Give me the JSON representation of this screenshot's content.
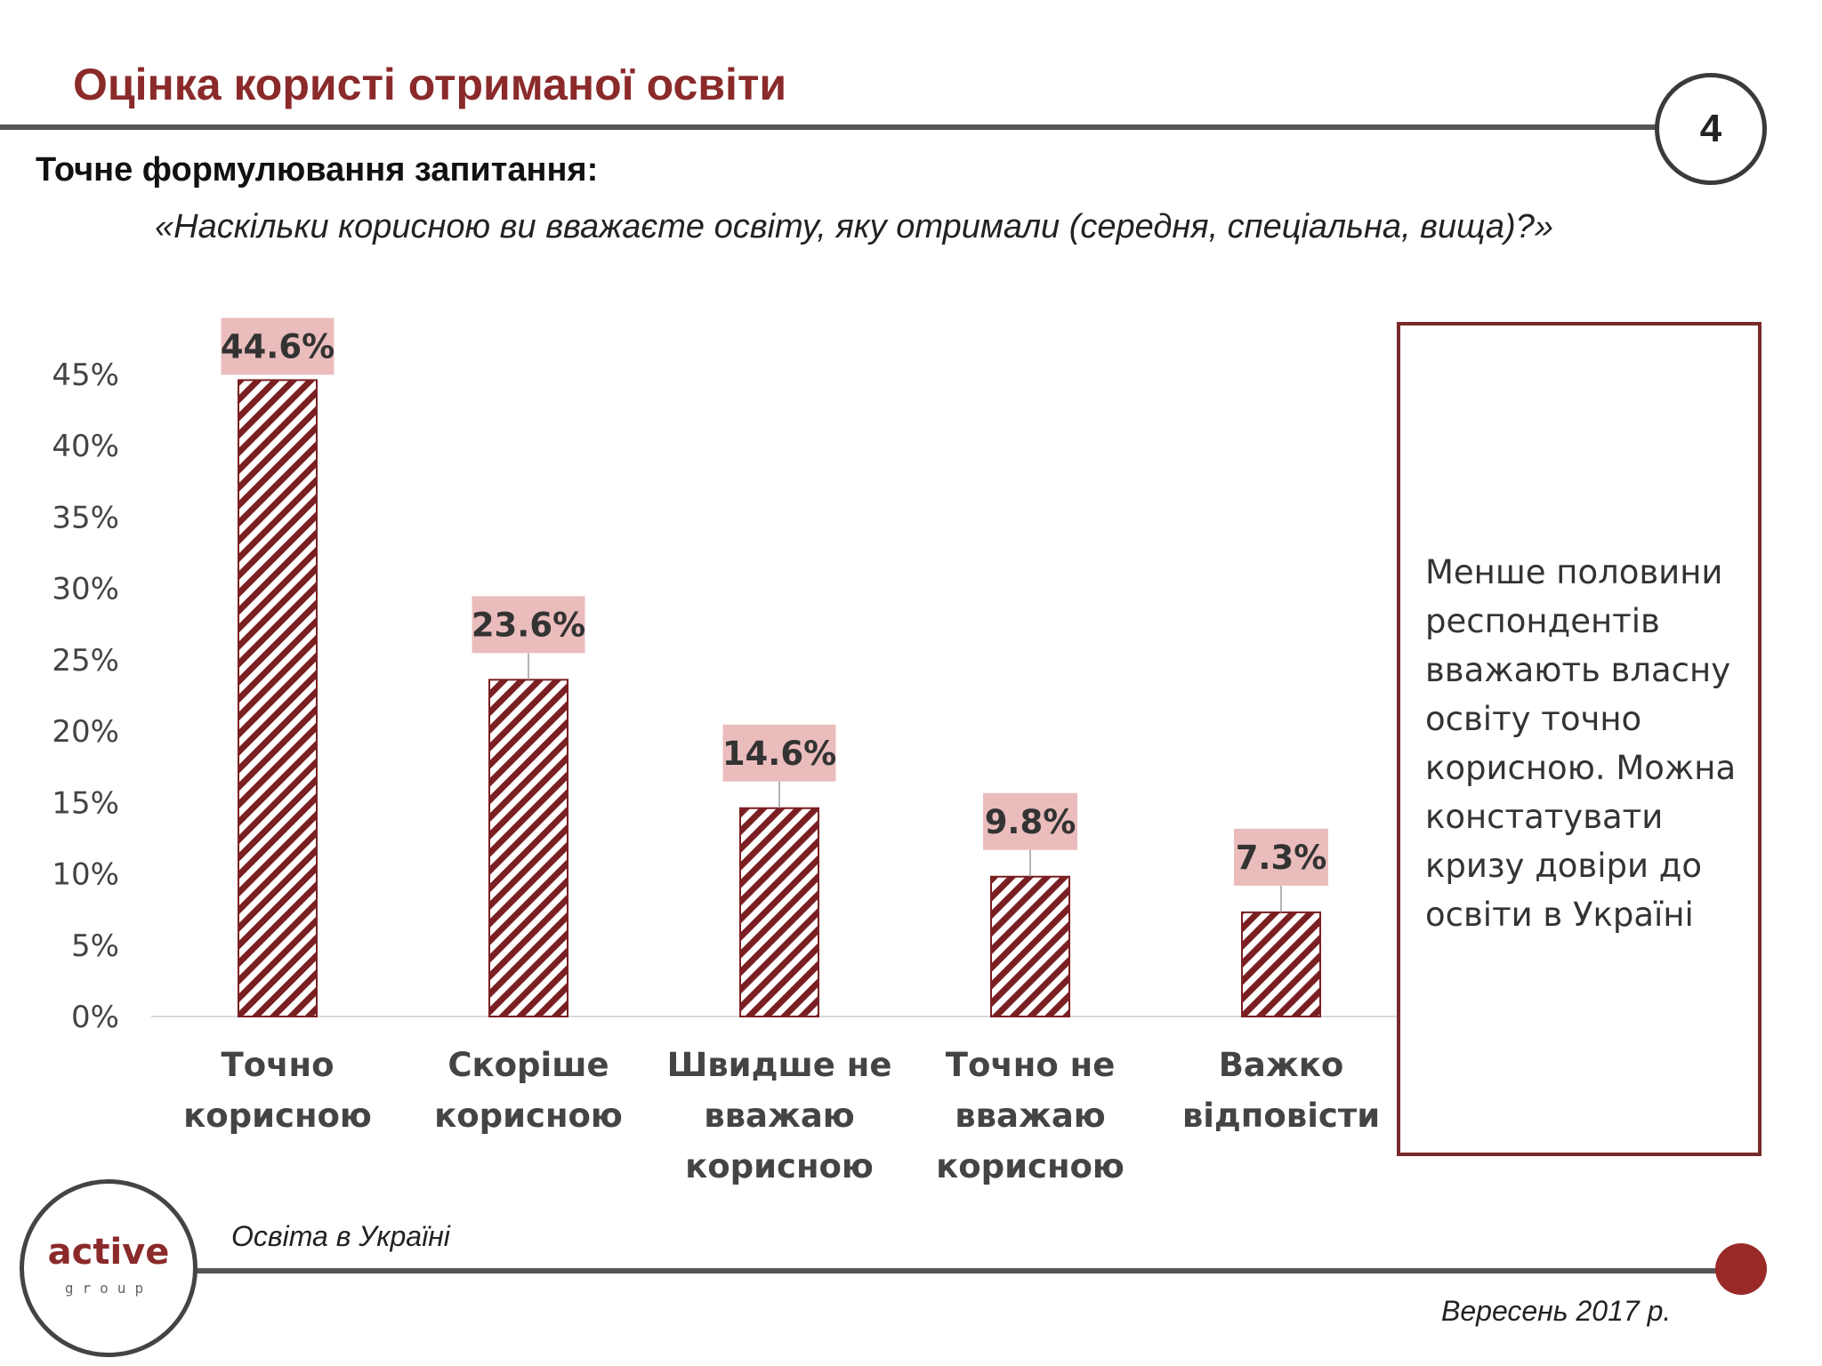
{
  "header": {
    "title": "Оцінка користі отриманої освіти",
    "page_number": "4",
    "question_label": "Точне формулювання запитання:",
    "question_text": "«Наскільки корисною ви вважаєте освіту, яку отримали (середня, спеціальна, вища)?»"
  },
  "note": {
    "text": "Менше половини респондентів вважають власну освіту точно корисною. Можна констатувати кризу довіри до освіти в Україні"
  },
  "footer": {
    "logo_word": "active",
    "logo_sub": "group",
    "left_text": "Освіта в Україні",
    "right_text": "Вересень 2017 р."
  },
  "colors": {
    "accent": "#8b2a2a",
    "bar_stripe": "#7a1f22",
    "label_bg": "#ebbcbc"
  },
  "chart_data": {
    "type": "bar",
    "categories": [
      [
        "Точно",
        "корисною"
      ],
      [
        "Скоріше",
        "корисною"
      ],
      [
        "Швидше не",
        "вважаю",
        "корисною"
      ],
      [
        "Точно не",
        "вважаю",
        "корисною"
      ],
      [
        "Важко",
        "відповісти"
      ]
    ],
    "values": [
      44.6,
      23.6,
      14.6,
      9.8,
      7.3
    ],
    "data_labels": [
      "44.6%",
      "23.6%",
      "14.6%",
      "9.8%",
      "7.3%"
    ],
    "yticks": [
      "0%",
      "5%",
      "10%",
      "15%",
      "20%",
      "25%",
      "30%",
      "35%",
      "40%",
      "45%"
    ],
    "ylim": [
      0,
      45
    ],
    "grid": false,
    "legend": "none"
  }
}
